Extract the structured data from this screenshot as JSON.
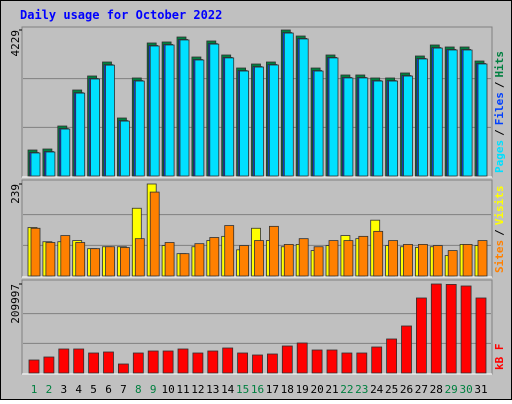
{
  "chart_data": [
    {
      "type": "bar",
      "title": "Daily usage for October 2022",
      "categories": [
        "1",
        "2",
        "3",
        "4",
        "5",
        "6",
        "7",
        "8",
        "9",
        "10",
        "11",
        "12",
        "13",
        "14",
        "15",
        "16",
        "17",
        "18",
        "19",
        "20",
        "21",
        "22",
        "23",
        "24",
        "25",
        "26",
        "27",
        "28",
        "29",
        "30",
        "31"
      ],
      "category_colors": [
        "#008040",
        "#008040",
        "#000000",
        "#000000",
        "#000000",
        "#000000",
        "#000000",
        "#008040",
        "#008040",
        "#000000",
        "#000000",
        "#000000",
        "#000000",
        "#000000",
        "#008040",
        "#008040",
        "#000000",
        "#000000",
        "#000000",
        "#000000",
        "#000000",
        "#008040",
        "#008040",
        "#000000",
        "#000000",
        "#000000",
        "#000000",
        "#000000",
        "#008040",
        "#008040",
        "#000000"
      ],
      "legend_separator": "/",
      "ylim": [
        0,
        4229
      ],
      "yticks": [
        4229
      ],
      "series": [
        {
          "name": "Hits",
          "color": "#008040",
          "values": [
            753,
            782,
            1448,
            2491,
            2897,
            3302,
            1680,
            2839,
            3853,
            3882,
            4026,
            3447,
            3911,
            3505,
            3128,
            3244,
            3302,
            4229,
            4055,
            3128,
            3505,
            2926,
            2926,
            2839,
            2839,
            2984,
            3476,
            3795,
            3737,
            3737,
            3331
          ]
        },
        {
          "name": "Files",
          "color": "#0040ff",
          "values": [
            680,
            710,
            1375,
            2415,
            2825,
            3225,
            1605,
            2765,
            3780,
            3810,
            3955,
            3375,
            3835,
            3435,
            3055,
            3170,
            3230,
            4155,
            3985,
            3055,
            3435,
            2855,
            2855,
            2765,
            2765,
            2910,
            3405,
            3720,
            3665,
            3665,
            3260
          ]
        },
        {
          "name": "Pages",
          "color": "#00e0ff",
          "values": [
            667,
            695,
            1360,
            2400,
            2810,
            3210,
            1590,
            2750,
            3765,
            3795,
            3940,
            3360,
            3820,
            3420,
            3040,
            3155,
            3215,
            4140,
            3970,
            3040,
            3420,
            2840,
            2840,
            2750,
            2750,
            2895,
            3390,
            3705,
            3650,
            3650,
            3245
          ]
        }
      ]
    },
    {
      "type": "bar",
      "legend_separator": "/",
      "ylim": [
        0,
        239
      ],
      "yticks": [
        239
      ],
      "series": [
        {
          "name": "Visits",
          "color": "#ffff00",
          "values": [
            126,
            89,
            89,
            92,
            71,
            76,
            76,
            176,
            239,
            79,
            58,
            76,
            92,
            103,
            68,
            124,
            92,
            76,
            82,
            66,
            79,
            105,
            97,
            145,
            79,
            76,
            74,
            76,
            53,
            82,
            79
          ]
        },
        {
          "name": "Sites",
          "color": "#ff8000",
          "values": [
            124,
            87,
            105,
            87,
            71,
            76,
            74,
            97,
            218,
            87,
            58,
            84,
            100,
            131,
            79,
            92,
            129,
            82,
            97,
            76,
            92,
            92,
            103,
            116,
            92,
            82,
            82,
            79,
            66,
            82,
            92
          ]
        }
      ]
    },
    {
      "type": "bar",
      "ylim": [
        0,
        209997
      ],
      "yticks": [
        209997
      ],
      "series": [
        {
          "name": "kB F",
          "color": "#ff0000",
          "values": [
            30680,
            37760,
            56640,
            56640,
            47200,
            49560,
            21240,
            47200,
            51920,
            51920,
            56640,
            47200,
            51920,
            59000,
            47200,
            42480,
            44840,
            63720,
            70800,
            54280,
            54280,
            47200,
            47200,
            61360,
            80240,
            110920,
            177000,
            209997,
            209000,
            205300,
            177000
          ]
        }
      ]
    }
  ]
}
